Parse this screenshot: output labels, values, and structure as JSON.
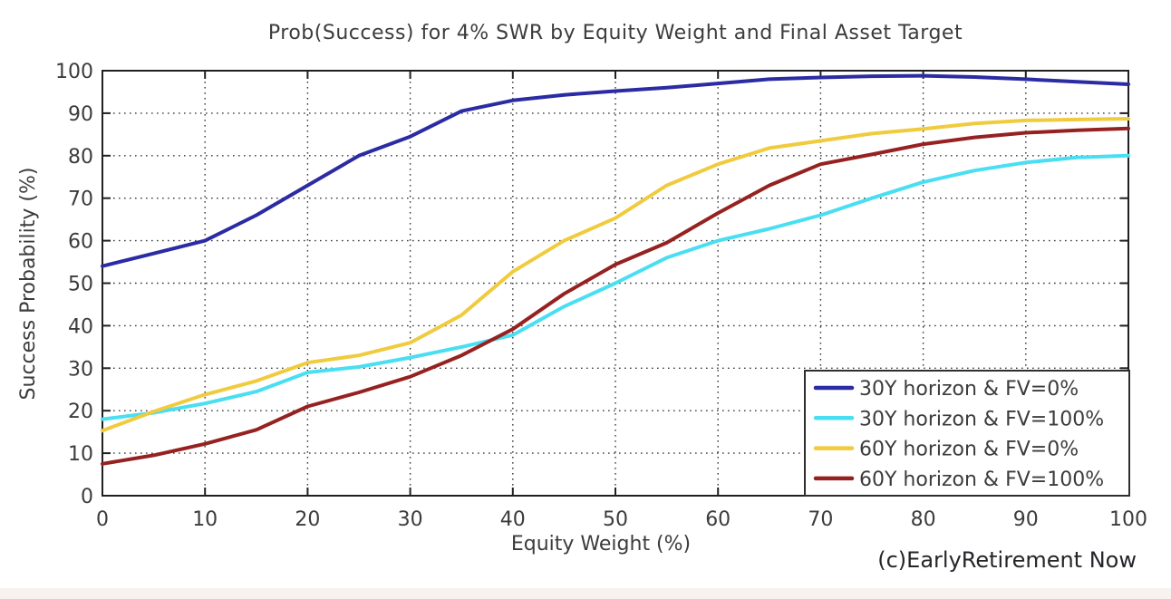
{
  "page": {
    "background_color": "#ffffff",
    "footer_strip_color": "#f7f2f0"
  },
  "chart_data": {
    "type": "line",
    "title": "Prob(Success) for 4% SWR by Equity Weight and Final Asset Target",
    "xlabel": "Equity Weight (%)",
    "ylabel": "Success Probability (%)",
    "watermark": "(c)EarlyRetirement Now",
    "xlim": [
      0,
      100
    ],
    "ylim": [
      0,
      100
    ],
    "x_ticks": [
      0,
      10,
      20,
      30,
      40,
      50,
      60,
      70,
      80,
      90,
      100
    ],
    "y_ticks": [
      0,
      10,
      20,
      30,
      40,
      50,
      60,
      70,
      80,
      90,
      100
    ],
    "grid": true,
    "grid_style": "dotted",
    "legend_position": "inside-bottom-right",
    "axis_color": "#1f1f1f",
    "label_color": "#3c3c3c",
    "x": [
      0,
      5,
      10,
      15,
      20,
      25,
      30,
      35,
      40,
      45,
      50,
      55,
      60,
      65,
      70,
      75,
      80,
      85,
      90,
      95,
      100
    ],
    "series": [
      {
        "name": "30Y horizon & FV=0%",
        "color": "#2b2ba3",
        "values": [
          54,
          57,
          60,
          66,
          73,
          80,
          84.5,
          90.5,
          93,
          94.3,
          95.2,
          96,
          97,
          98,
          98.4,
          98.7,
          98.8,
          98.5,
          98,
          97.4,
          96.8
        ]
      },
      {
        "name": "30Y horizon & FV=100%",
        "color": "#4adef2",
        "values": [
          18,
          19.5,
          21.7,
          24.5,
          29,
          30.3,
          32.5,
          35,
          37.8,
          44.5,
          50,
          56,
          60,
          62.8,
          66,
          70,
          73.8,
          76.5,
          78.4,
          79.6,
          80
        ]
      },
      {
        "name": "60Y horizon & FV=0%",
        "color": "#f0cb3e",
        "values": [
          15.3,
          19.8,
          23.8,
          27,
          31.3,
          33,
          36,
          42.5,
          52.7,
          60,
          65.3,
          73,
          78,
          81.8,
          83.5,
          85.2,
          86.3,
          87.6,
          88.3,
          88.5,
          88.7
        ]
      },
      {
        "name": "60Y horizon & FV=100%",
        "color": "#952220",
        "values": [
          7.5,
          9.5,
          12.2,
          15.5,
          21,
          24.3,
          28,
          33,
          39.2,
          47.5,
          54.4,
          59.5,
          66.5,
          73,
          78,
          80.3,
          82.7,
          84.3,
          85.4,
          86,
          86.4
        ]
      }
    ]
  }
}
